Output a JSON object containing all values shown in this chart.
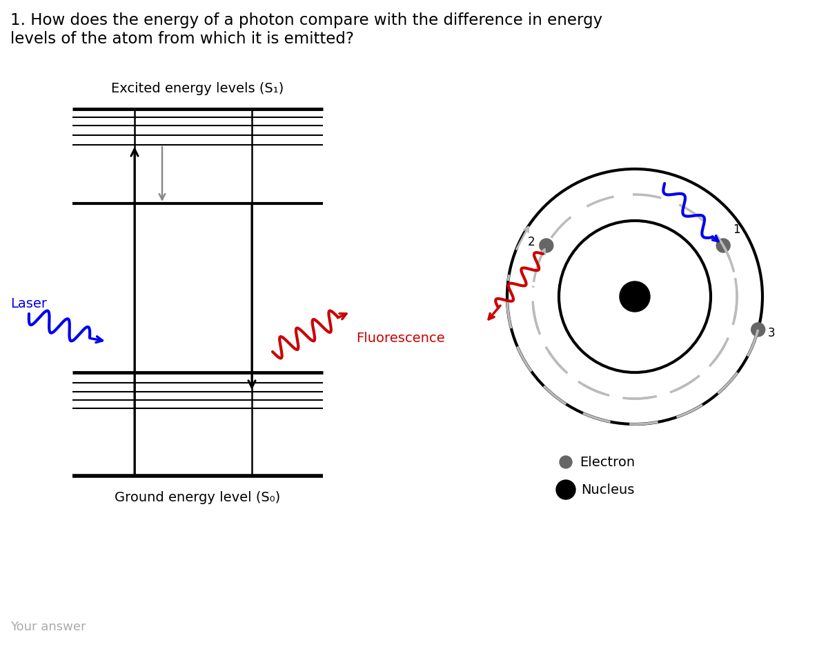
{
  "title_text": "1. How does the energy of a photon compare with the difference in energy\nlevels of the atom from which it is emitted?",
  "excited_label": "Excited energy levels (S₁)",
  "ground_label": "Ground energy level (S₀)",
  "laser_label": "Laser",
  "fluorescence_label": "Fluorescence",
  "electron_label": "Electron",
  "nucleus_label": "Nucleus",
  "your_answer_label": "Your answer",
  "bg_color": "#ffffff",
  "text_color": "#000000",
  "laser_color": "#0000ee",
  "fluorescence_color": "#cc0000",
  "gray_arrow_color": "#888888",
  "dashed_color": "#bbbbbb",
  "electron_color": "#666666"
}
